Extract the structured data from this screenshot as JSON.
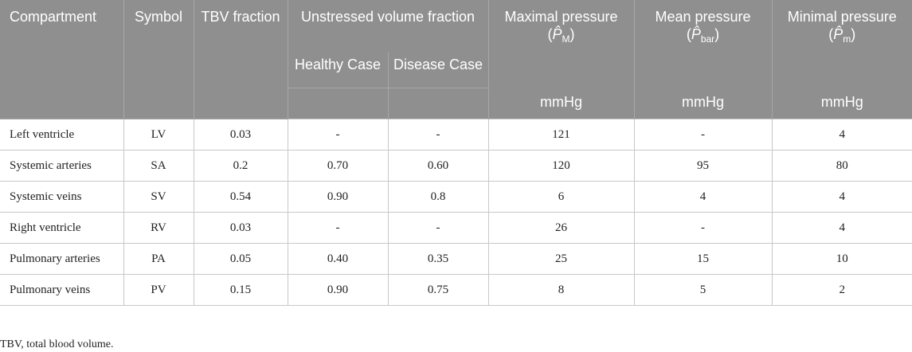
{
  "header": {
    "compartment": "Compartment",
    "symbol": "Symbol",
    "tbv": "TBV fraction",
    "unstressed": "Unstressed volume fraction",
    "healthy": "Healthy Case",
    "disease": "Disease Case",
    "maximal": {
      "text": "Maximal pressure (",
      "var": "P̂",
      "sub": "M",
      "close": ")"
    },
    "mean": {
      "text": "Mean pressure (",
      "var": "P̂",
      "sub": "bar",
      "close": ")"
    },
    "minimal": {
      "text": "Minimal pressure (",
      "var": "P̂",
      "sub": "m",
      "close": ")"
    },
    "unit": "mmHg"
  },
  "rows": [
    {
      "compartment": "Left ventricle",
      "symbol": "LV",
      "tbv": "0.03",
      "healthy": "-",
      "disease": "-",
      "max": "121",
      "mean": "-",
      "min": "4"
    },
    {
      "compartment": "Systemic arteries",
      "symbol": "SA",
      "tbv": "0.2",
      "healthy": "0.70",
      "disease": "0.60",
      "max": "120",
      "mean": "95",
      "min": "80"
    },
    {
      "compartment": "Systemic veins",
      "symbol": "SV",
      "tbv": "0.54",
      "healthy": "0.90",
      "disease": "0.8",
      "max": "6",
      "mean": "4",
      "min": "4"
    },
    {
      "compartment": "Right ventricle",
      "symbol": "RV",
      "tbv": "0.03",
      "healthy": "-",
      "disease": "-",
      "max": "26",
      "mean": "-",
      "min": "4"
    },
    {
      "compartment": "Pulmonary arteries",
      "symbol": "PA",
      "tbv": "0.05",
      "healthy": "0.40",
      "disease": "0.35",
      "max": "25",
      "mean": "15",
      "min": "10"
    },
    {
      "compartment": "Pulmonary veins",
      "symbol": "PV",
      "tbv": "0.15",
      "healthy": "0.90",
      "disease": "0.75",
      "max": "8",
      "mean": "5",
      "min": "2"
    }
  ],
  "footnote": "TBV, total blood volume."
}
